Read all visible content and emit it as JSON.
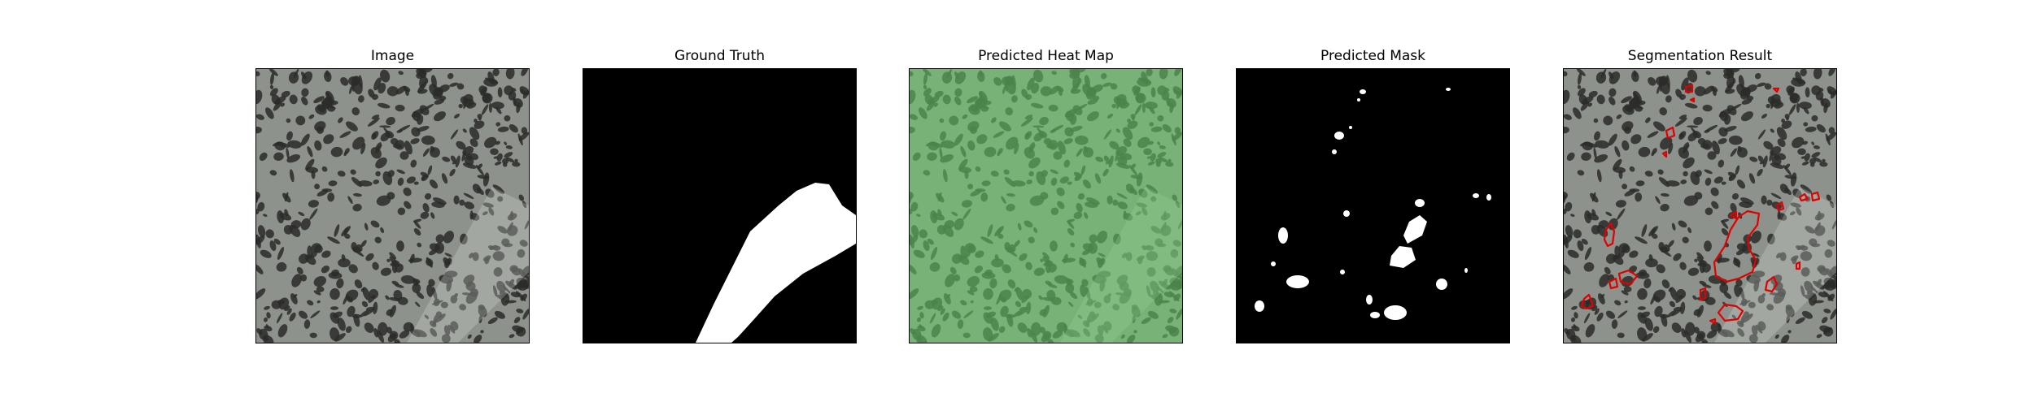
{
  "figure": {
    "panels": [
      {
        "id": "image",
        "title": "Image"
      },
      {
        "id": "ground-truth",
        "title": "Ground Truth"
      },
      {
        "id": "heat-map",
        "title": "Predicted Heat Map"
      },
      {
        "id": "mask",
        "title": "Predicted Mask"
      },
      {
        "id": "segmentation",
        "title": "Segmentation Result"
      }
    ]
  },
  "colors": {
    "background": "#ffffff",
    "texture_base": "#8e928c",
    "texture_spot": "#2b2b29",
    "mask_fg": "#ffffff",
    "mask_bg": "#000000",
    "heat_tint": "#7fd07f",
    "contour": "#e00000"
  }
}
